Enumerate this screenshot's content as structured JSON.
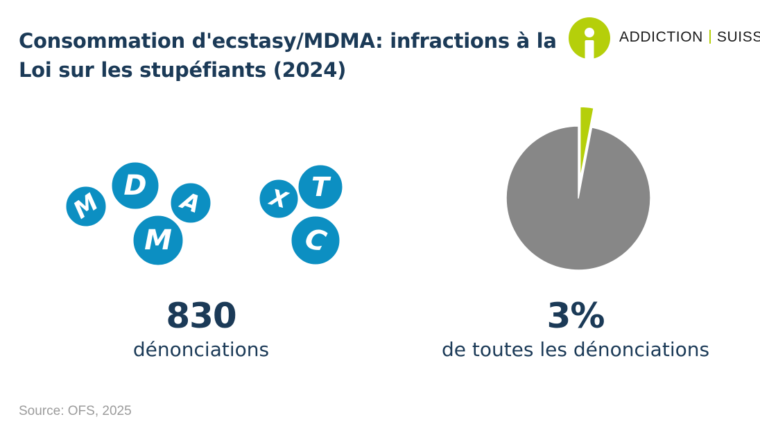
{
  "title": "Consommation d'ecstasy/MDMA: infractions à la Loi sur les stupéfiants (2024)",
  "logo": {
    "part1": "ADDICTION",
    "part2": "SUISSE",
    "accent_color": "#b5cf0a"
  },
  "letter_badges": {
    "color": "#0c8fc2",
    "letters": [
      "M",
      "D",
      "A",
      "M",
      "X",
      "T",
      "C"
    ]
  },
  "stats": {
    "count_value": "830",
    "count_label": "dénonciations",
    "share_value": "3%",
    "share_label": "de toutes les dénonciations"
  },
  "chart_data": {
    "type": "pie",
    "slices": [
      {
        "value": 3,
        "color": "#b5cf0a",
        "exploded": true
      },
      {
        "value": 97,
        "color": "#878787"
      }
    ]
  },
  "source": "Source: OFS, 2025"
}
